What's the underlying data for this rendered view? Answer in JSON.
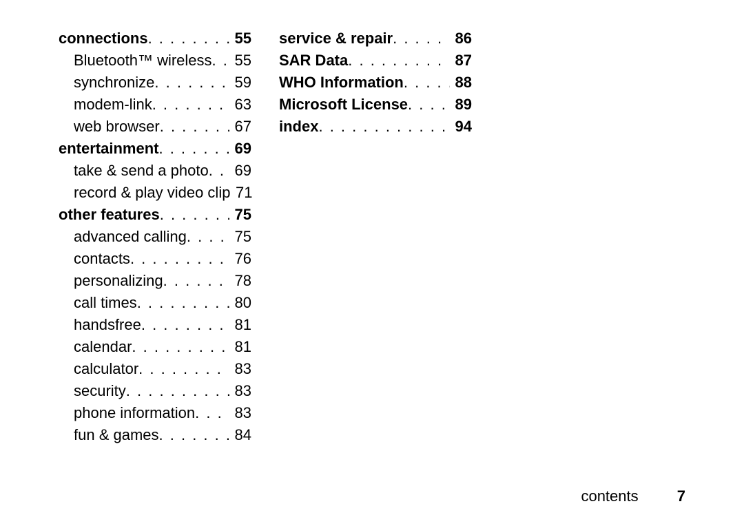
{
  "columns": [
    {
      "entries": [
        {
          "title": "connections",
          "page": "55",
          "bold": true,
          "sub": false
        },
        {
          "title": "Bluetooth™ wireless",
          "page": "55",
          "bold": false,
          "sub": true
        },
        {
          "title": "synchronize",
          "page": "59",
          "bold": false,
          "sub": true
        },
        {
          "title": "modem-link",
          "page": "63",
          "bold": false,
          "sub": true
        },
        {
          "title": "web browser",
          "page": "67",
          "bold": false,
          "sub": true
        },
        {
          "title": "entertainment",
          "page": "69",
          "bold": true,
          "sub": false
        },
        {
          "title": "take & send a photo",
          "page": "69",
          "bold": false,
          "sub": true
        },
        {
          "title": "record & play video clip",
          "page": "71",
          "bold": false,
          "sub": true
        },
        {
          "title": "other features",
          "page": "75",
          "bold": true,
          "sub": false
        },
        {
          "title": "advanced calling",
          "page": "75",
          "bold": false,
          "sub": true
        },
        {
          "title": "contacts",
          "page": "76",
          "bold": false,
          "sub": true
        },
        {
          "title": "personalizing",
          "page": "78",
          "bold": false,
          "sub": true
        },
        {
          "title": "call times",
          "page": "80",
          "bold": false,
          "sub": true
        },
        {
          "title": "handsfree",
          "page": "81",
          "bold": false,
          "sub": true
        },
        {
          "title": "calendar",
          "page": "81",
          "bold": false,
          "sub": true
        },
        {
          "title": "calculator",
          "page": "83",
          "bold": false,
          "sub": true
        },
        {
          "title": "security",
          "page": "83",
          "bold": false,
          "sub": true
        },
        {
          "title": "phone information",
          "page": "83",
          "bold": false,
          "sub": true
        },
        {
          "title": "fun & games",
          "page": "84",
          "bold": false,
          "sub": true
        }
      ]
    },
    {
      "entries": [
        {
          "title": "service & repair",
          "page": "86",
          "bold": true,
          "sub": false
        },
        {
          "title": "SAR Data",
          "page": "87",
          "bold": true,
          "sub": false
        },
        {
          "title": "WHO Information",
          "page": "88",
          "bold": true,
          "sub": false
        },
        {
          "title": "Microsoft License",
          "page": "89",
          "bold": true,
          "sub": false
        },
        {
          "title": "index",
          "page": "94",
          "bold": true,
          "sub": false
        }
      ]
    }
  ],
  "footer": {
    "label": "contents",
    "page": "7"
  }
}
